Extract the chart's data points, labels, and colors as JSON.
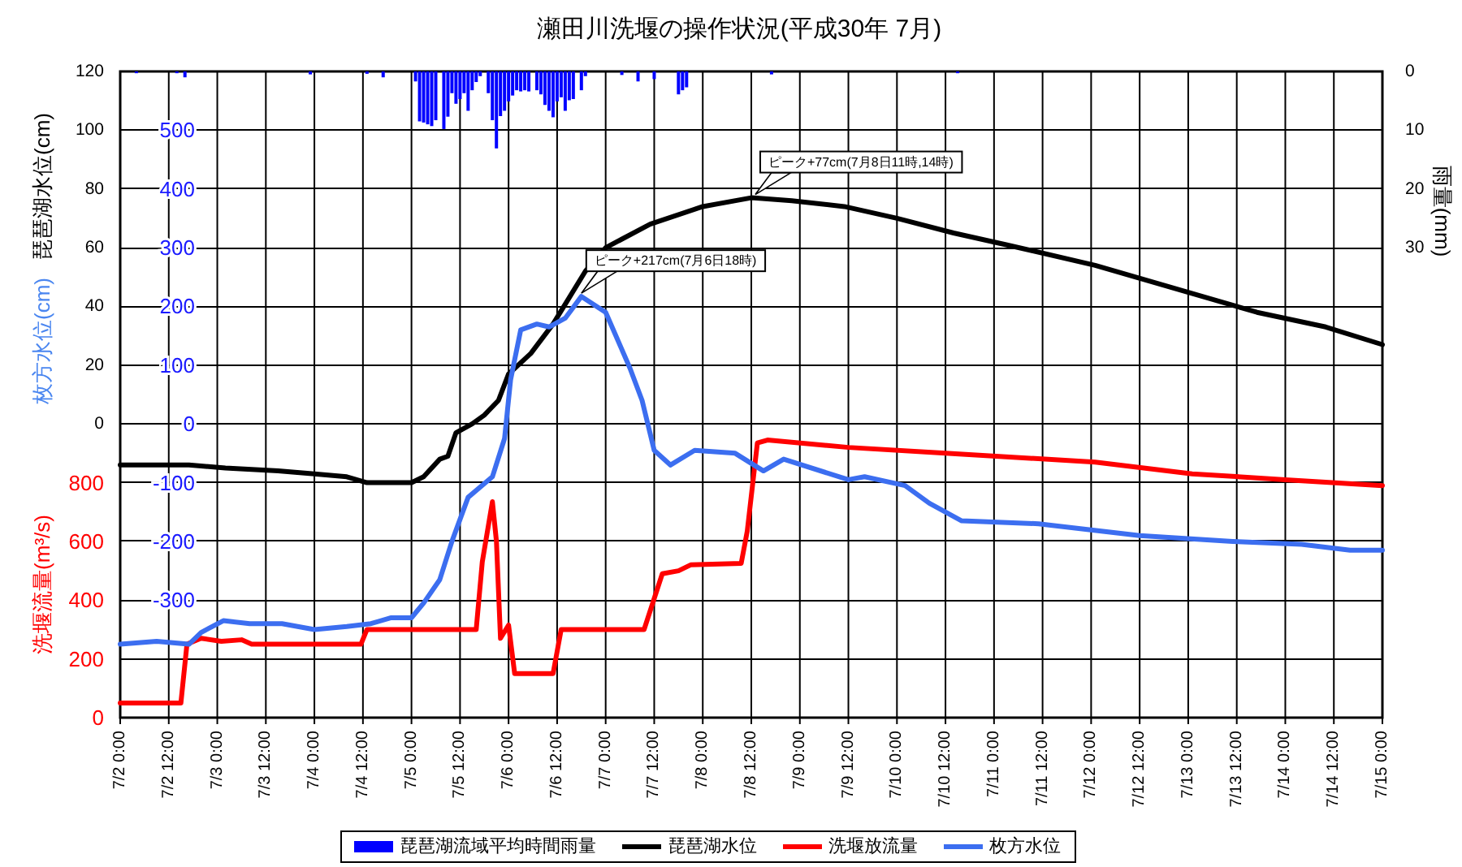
{
  "chart_data": [
    {
      "type": "line",
      "title": "瀬田川洗堰の操作状況(平成30年 7月)",
      "ylabel": "琵琶湖水位(cm)",
      "y2label": "雨量(mm)",
      "y3label": "洗堰流量(m³/s)",
      "xlim": [
        "--07-02T00:00",
        "--07-15T00:00"
      ],
      "xticks": [
        {
          "value": "--07-02T00:00",
          "label": "7/2 0:00"
        },
        {
          "value": "--07-02T12:00",
          "label": "7/2 12:00"
        },
        {
          "value": "--07-03T00:00",
          "label": "7/3 0:00"
        },
        {
          "value": "--07-03T12:00",
          "label": "7/3 12:00"
        },
        {
          "value": "--07-04T00:00",
          "label": "7/4 0:00"
        },
        {
          "value": "--07-04T12:00",
          "label": "7/4 12:00"
        },
        {
          "value": "--07-05T00:00",
          "label": "7/5 0:00"
        },
        {
          "value": "--07-05T12:00",
          "label": "7/5 12:00"
        },
        {
          "value": "--07-06T00:00",
          "label": "7/6 0:00"
        },
        {
          "value": "--07-06T12:00",
          "label": "7/6 12:00"
        },
        {
          "value": "--07-07T00:00",
          "label": "7/7 0:00"
        },
        {
          "value": "--07-07T12:00",
          "label": "7/7 12:00"
        },
        {
          "value": "--07-08T00:00",
          "label": "7/8 0:00"
        },
        {
          "value": "--07-08T12:00",
          "label": "7/8 12:00"
        },
        {
          "value": "--07-09T00:00",
          "label": "7/9 0:00"
        },
        {
          "value": "--07-09T12:00",
          "label": "7/9 12:00"
        },
        {
          "value": "--07-10T00:00",
          "label": "7/10 0:00"
        },
        {
          "value": "--07-10T12:00",
          "label": "7/10 12:00"
        },
        {
          "value": "--07-11T00:00",
          "label": "7/11 0:00"
        },
        {
          "value": "--07-11T12:00",
          "label": "7/11 12:00"
        },
        {
          "value": "--07-12T00:00",
          "label": "7/12 0:00"
        },
        {
          "value": "--07-12T12:00",
          "label": "7/12 12:00"
        },
        {
          "value": "--07-13T00:00",
          "label": "7/13 0:00"
        },
        {
          "value": "--07-13T12:00",
          "label": "7/13 12:00"
        },
        {
          "value": "--07-14T00:00",
          "label": "7/14 0:00"
        },
        {
          "value": "--07-14T12:00",
          "label": "7/14 12:00"
        },
        {
          "value": "--07-15T00:00",
          "label": "7/15 0:00"
        }
      ],
      "ylim": [
        -100,
        120
      ],
      "yticks": [
        0,
        20,
        40,
        60,
        80,
        100,
        120
      ],
      "y2lim": [
        110,
        0
      ],
      "y2ticks": [
        0,
        10,
        20,
        30
      ],
      "y3lim": [
        0,
        2200
      ],
      "y3ticks": [
        0,
        200,
        400,
        600,
        800
      ],
      "grid": true,
      "legend": "bottom",
      "series": [
        {
          "name": "琵琶湖流域平均時間雨量",
          "type": "bar",
          "axis": "y2",
          "color": "#0000ff",
          "x": [
            "--07-02T04:00",
            "--07-02T14:00",
            "--07-02T16:00",
            "--07-03T23:00",
            "--07-04T13:00",
            "--07-04T17:00",
            "--07-05T01:00",
            "--07-05T02:00",
            "--07-05T03:00",
            "--07-05T04:00",
            "--07-05T05:00",
            "--07-05T06:00",
            "--07-05T08:00",
            "--07-05T09:00",
            "--07-05T10:00",
            "--07-05T11:00",
            "--07-05T12:00",
            "--07-05T13:00",
            "--07-05T14:00",
            "--07-05T15:00",
            "--07-05T16:00",
            "--07-05T17:00",
            "--07-05T19:00",
            "--07-05T20:00",
            "--07-05T21:00",
            "--07-05T22:00",
            "--07-05T23:00",
            "--07-06T00:00",
            "--07-06T01:00",
            "--07-06T02:00",
            "--07-06T03:00",
            "--07-06T04:00",
            "--07-06T05:00",
            "--07-06T07:00",
            "--07-06T08:00",
            "--07-06T09:00",
            "--07-06T10:00",
            "--07-06T11:00",
            "--07-06T12:00",
            "--07-06T13:00",
            "--07-06T14:00",
            "--07-06T15:00",
            "--07-06T16:00",
            "--07-06T18:00",
            "--07-06T19:00",
            "--07-07T04:00",
            "--07-07T08:00",
            "--07-07T12:00",
            "--07-07T18:00",
            "--07-07T19:00",
            "--07-07T20:00",
            "--07-08T17:00",
            "--07-10T15:00"
          ],
          "values": [
            0.3,
            0.3,
            1.0,
            0.5,
            0.4,
            1.0,
            1.7,
            8.5,
            8.7,
            9.0,
            9.3,
            8.3,
            9.8,
            7.7,
            3.7,
            5.5,
            4.7,
            3.7,
            6.7,
            3.2,
            1.8,
            0.8,
            3.7,
            8.3,
            13.1,
            7.6,
            6.7,
            5.1,
            4.1,
            3.2,
            3.4,
            3.2,
            3.4,
            3.2,
            3.9,
            5.7,
            6.7,
            7.8,
            5.1,
            4.4,
            6.7,
            4.9,
            4.7,
            3.2,
            0.8,
            0.6,
            1.7,
            1.3,
            3.9,
            3.2,
            2.7,
            0.5,
            0.3
          ]
        },
        {
          "name": "琵琶湖水位",
          "color": "#000000",
          "x": [
            "--07-02T00:00",
            "--07-02T17:00",
            "--07-03T02:00",
            "--07-03T15:00",
            "--07-04T00:00",
            "--07-04T08:00",
            "--07-04T13:00",
            "--07-05T00:00",
            "--07-05T03:00",
            "--07-05T07:00",
            "--07-05T09:00",
            "--07-05T11:00",
            "--07-05T15:00",
            "--07-05T18:00",
            "--07-05T21:30",
            "--07-06T00:00",
            "--07-06T05:30",
            "--07-06T11:00",
            "--07-06T15:00",
            "--07-06T19:00",
            "--07-07T00:00",
            "--07-07T11:00",
            "--07-08T00:00",
            "--07-08T12:00",
            "--07-08T22:00",
            "--07-09T11:00",
            "--07-10T00:00",
            "--07-10T14:00",
            "--07-11T03:00",
            "--07-12T01:00",
            "--07-12T23:30",
            "--07-13T17:00",
            "--07-14T10:00",
            "--07-15T00:00"
          ],
          "values": [
            -14,
            -14,
            -15,
            -16,
            -17,
            -18,
            -20,
            -20,
            -18,
            -12,
            -11,
            -3,
            0,
            3,
            8,
            17,
            24,
            34,
            43,
            52,
            60,
            68,
            74,
            77,
            76,
            74,
            70,
            65,
            61,
            54,
            45,
            38,
            33,
            27
          ]
        },
        {
          "name": "洗堰放流量",
          "axis": "y3",
          "color": "#ff0000",
          "x": [
            "--07-02T00:00",
            "--07-02T15:00",
            "--07-02T16:30",
            "--07-02T20:00",
            "--07-03T01:00",
            "--07-03T06:00",
            "--07-03T08:30",
            "--07-04T11:30",
            "--07-04T13:00",
            "--07-05T16:00",
            "--07-05T17:30",
            "--07-05T20:00",
            "--07-05T21:00",
            "--07-05T22:00",
            "--07-06T00:00",
            "--07-06T01:30",
            "--07-06T11:00",
            "--07-06T13:00",
            "--07-07T09:30",
            "--07-07T14:00",
            "--07-07T18:00",
            "--07-07T21:00",
            "--07-08T09:30",
            "--07-08T11:00",
            "--07-08T13:30",
            "--07-08T16:00",
            "--07-09T12:00",
            "--07-10T12:00",
            "--07-12T01:00",
            "--07-13T01:00",
            "--07-14T00:00",
            "--07-15T00:00"
          ],
          "values": [
            50,
            50,
            250,
            270,
            260,
            265,
            250,
            250,
            300,
            300,
            530,
            735,
            600,
            270,
            315,
            150,
            150,
            300,
            300,
            490,
            500,
            520,
            525,
            635,
            935,
            945,
            920,
            900,
            870,
            830,
            810,
            790
          ]
        }
      ],
      "annotations": [
        {
          "text": "ピーク+77cm(7月8日11時,14時)",
          "x": "--07-08T13:00",
          "y": 77
        }
      ]
    },
    {
      "type": "line",
      "ylabel": "枚方水位(cm)",
      "tick_labels": "y",
      "xlim": [
        "--07-02T00:00",
        "--07-15T00:00"
      ],
      "ylim": [
        -500,
        600
      ],
      "yticks": [
        -300,
        -200,
        -100,
        0,
        100,
        200,
        300,
        400,
        500
      ],
      "legend": "bottom",
      "series": [
        {
          "name": "枚方水位",
          "color": "#3c6ef0",
          "x": [
            "--07-02T00:00",
            "--07-02T09:00",
            "--07-02T17:00",
            "--07-02T20:00",
            "--07-03T01:30",
            "--07-03T08:00",
            "--07-03T16:00",
            "--07-04T00:00",
            "--07-04T08:00",
            "--07-04T14:00",
            "--07-04T19:00",
            "--07-05T00:00",
            "--07-05T03:00",
            "--07-05T07:00",
            "--07-05T10:00",
            "--07-05T14:00",
            "--07-05T20:00",
            "--07-05T23:00",
            "--07-06T00:30",
            "--07-06T03:00",
            "--07-06T07:00",
            "--07-06T10:00",
            "--07-06T14:00",
            "--07-06T18:00",
            "--07-07T00:00",
            "--07-07T06:00",
            "--07-07T09:00",
            "--07-07T12:00",
            "--07-07T16:00",
            "--07-07T22:00",
            "--07-08T08:00",
            "--07-08T15:00",
            "--07-08T20:00",
            "--07-09T12:00",
            "--07-09T16:00",
            "--07-10T02:00",
            "--07-10T08:00",
            "--07-10T16:00",
            "--07-11T11:00",
            "--07-12T12:00",
            "--07-13T11:00",
            "--07-14T04:00",
            "--07-14T16:00",
            "--07-15T00:00"
          ],
          "values": [
            -375,
            -370,
            -375,
            -355,
            -335,
            -340,
            -340,
            -350,
            -345,
            -340,
            -330,
            -330,
            -305,
            -265,
            -200,
            -125,
            -90,
            -25,
            75,
            160,
            170,
            165,
            180,
            217,
            190,
            95,
            40,
            -45,
            -70,
            -45,
            -50,
            -80,
            -60,
            -95,
            -90,
            -105,
            -135,
            -165,
            -170,
            -190,
            -200,
            -205,
            -215,
            -215
          ]
        }
      ],
      "annotations": [
        {
          "text": "ピーク+217cm(7月6日18時)",
          "x": "--07-06T18:00",
          "y": 217
        }
      ]
    }
  ]
}
